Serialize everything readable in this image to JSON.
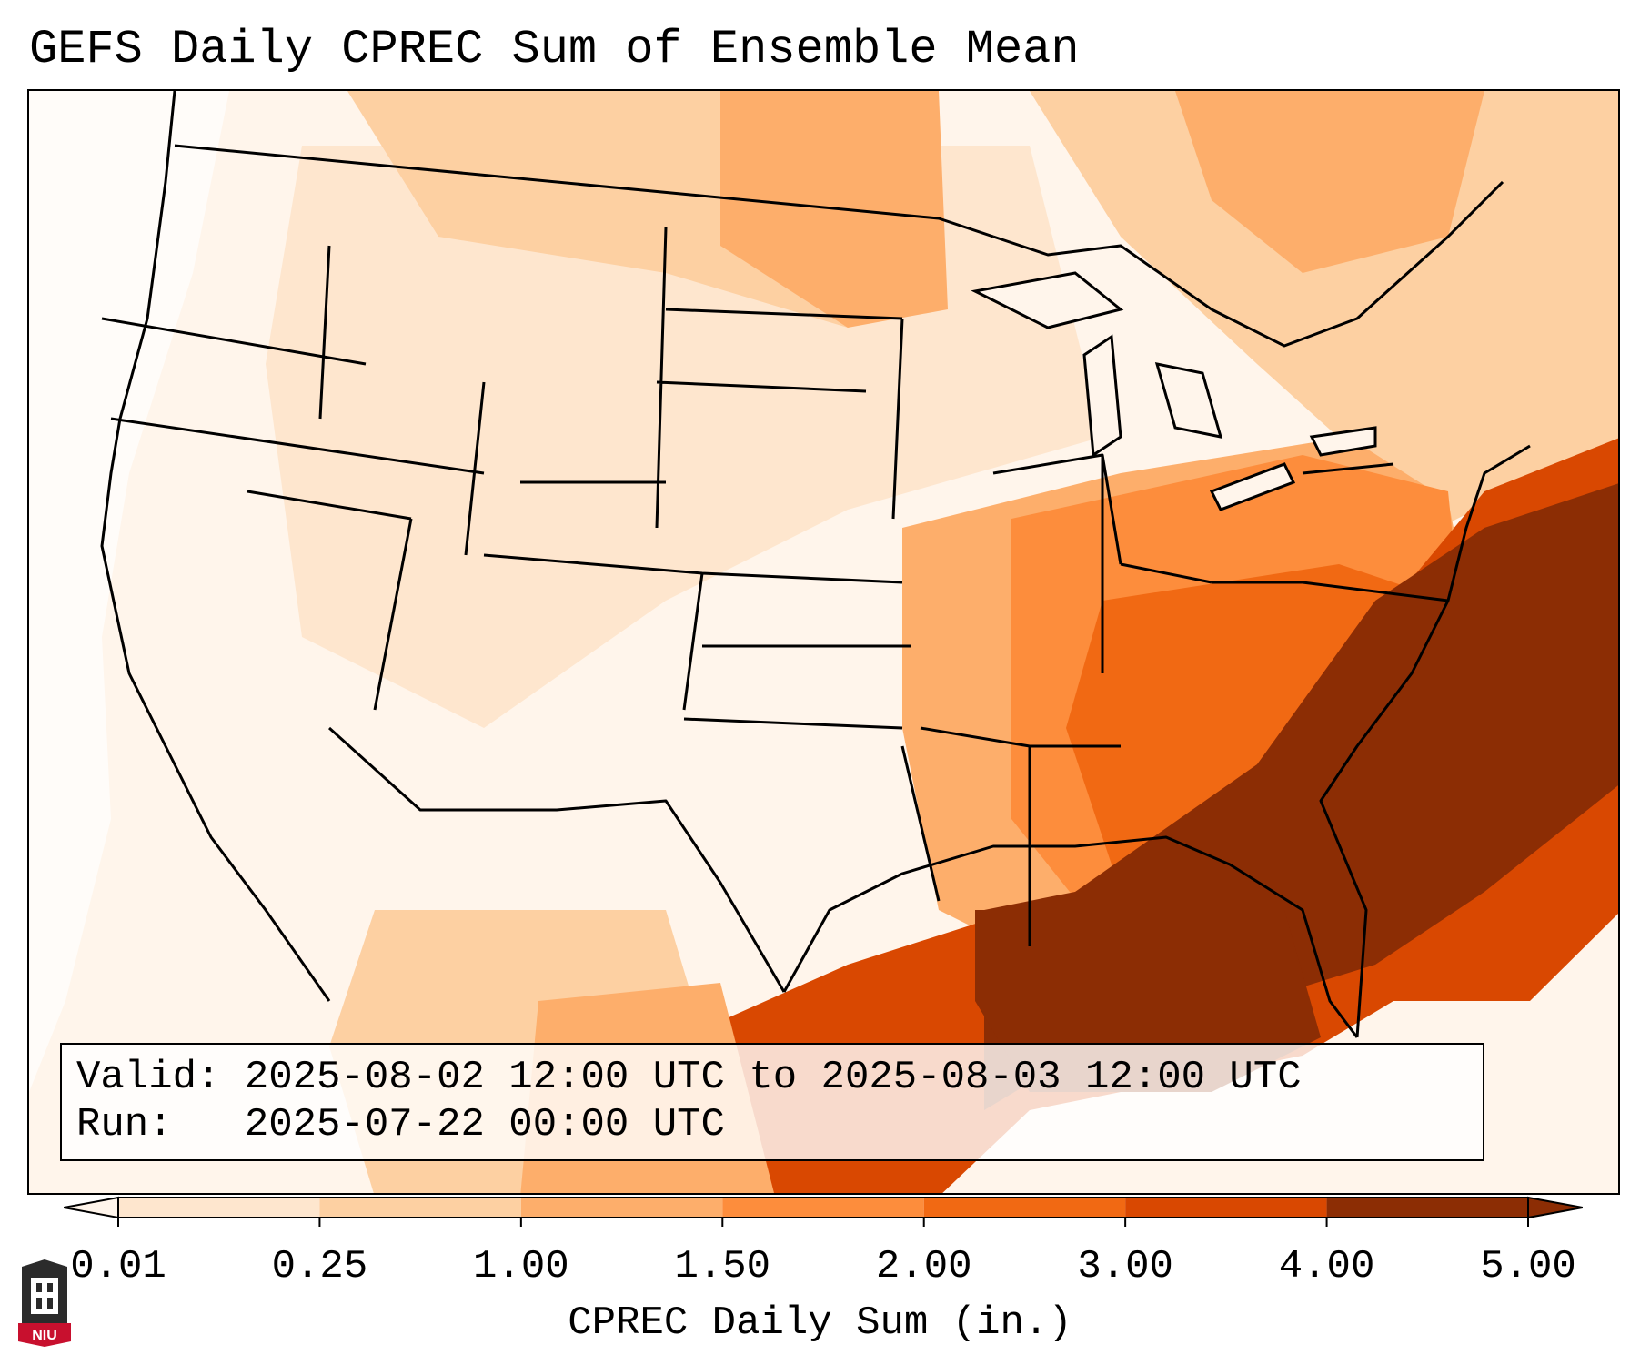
{
  "title": "GEFS Daily CPREC Sum of Ensemble Mean",
  "info": {
    "valid_label": "Valid:",
    "valid_value": "2025-08-02 12:00 UTC to 2025-08-03 12:00 UTC",
    "run_label": "Run:",
    "run_value": "2025-07-22 00:00 UTC"
  },
  "colorbar": {
    "label": "CPREC Daily Sum (in.)",
    "ticks": [
      "0.01",
      "0.25",
      "1.00",
      "1.50",
      "2.00",
      "3.00",
      "4.00",
      "5.00"
    ],
    "colors": [
      "#fff5eb",
      "#fee6ce",
      "#fdd0a2",
      "#fdae6b",
      "#fd8d3c",
      "#f16913",
      "#d94801",
      "#8c2d04"
    ],
    "extend": "both"
  },
  "logo": {
    "text": "NIU"
  }
}
